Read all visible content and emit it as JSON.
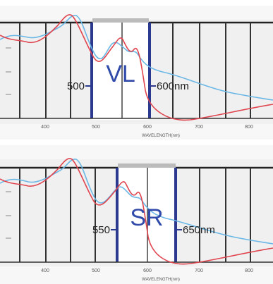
{
  "panels": [
    {
      "id": "vl",
      "band_label": "VL",
      "left_marker": "500",
      "right_marker": "600nm",
      "band_nm": [
        500,
        600
      ],
      "x_ticks": [
        "400",
        "500",
        "600",
        "700",
        "800"
      ],
      "x_label": "WAVELENGTH(nm)"
    },
    {
      "id": "sr",
      "band_label": "SR",
      "left_marker": "550",
      "right_marker": "650nm",
      "band_nm": [
        550,
        650
      ],
      "x_ticks": [
        "400",
        "500",
        "600",
        "700",
        "800"
      ],
      "x_label": "WAVELENGTH(nm)"
    }
  ],
  "colors": {
    "band_edge": "#2b3a8f",
    "band_label": "#2f4aa8",
    "red_curve": "#e0454f",
    "blue_curve": "#6ab7e6",
    "grid": "#222222",
    "background": "#f2f2f2"
  }
}
